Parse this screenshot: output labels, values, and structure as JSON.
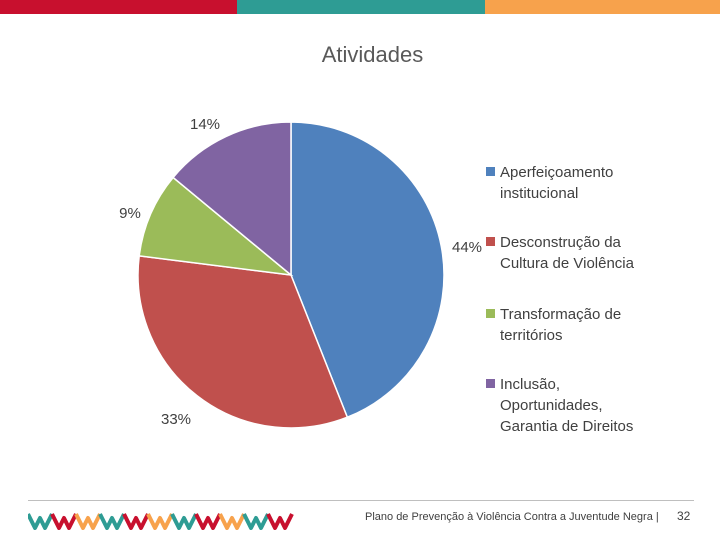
{
  "chart_data": {
    "type": "pie",
    "title": "Atividades",
    "slices": [
      {
        "name": "Aperfeiçoamento institucional",
        "value": 44,
        "label": "44%",
        "color": "#4F81BD"
      },
      {
        "name": "Desconstrução da Cultura de Violência",
        "value": 33,
        "label": "33%",
        "color": "#C0504D"
      },
      {
        "name": "Transformação de territórios",
        "value": 9,
        "label": "9%",
        "color": "#9BBB59"
      },
      {
        "name": "Inclusão, Oportunidades, Garantia de Direitos",
        "value": 14,
        "label": "14%",
        "color": "#8064A2"
      }
    ],
    "legend_position": "right"
  },
  "legend": [
    {
      "line1": "Aperfeiçoamento",
      "line2": "institucional",
      "line3": ""
    },
    {
      "line1": "Desconstrução da",
      "line2": "Cultura de Violência",
      "line3": ""
    },
    {
      "line1": "Transformação de",
      "line2": "territórios",
      "line3": ""
    },
    {
      "line1": "Inclusão,",
      "line2": "Oportunidades,",
      "line3": "Garantia de Direitos"
    }
  ],
  "header_band_colors": [
    "#C8102E",
    "#2E9C94",
    "#F7A24C"
  ],
  "footer": {
    "text": "Plano de Prevenção à Violência Contra a Juventude Negra |",
    "page": "32"
  },
  "logo": {
    "colors": [
      "#2E9C94",
      "#C8102E",
      "#F7A24C"
    ]
  }
}
